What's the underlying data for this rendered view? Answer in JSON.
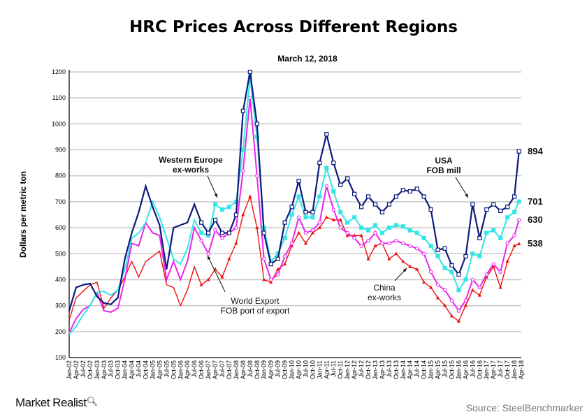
{
  "chart_data": {
    "type": "line",
    "title": "HRC Prices Across Different Regions",
    "subtitle": "March 12, 2018",
    "xlabel": "",
    "ylabel": "Dollars per metric ton",
    "ylim": [
      100,
      1200
    ],
    "yticks": [
      100,
      200,
      300,
      400,
      500,
      600,
      700,
      800,
      900,
      1000,
      1100,
      1200
    ],
    "grid": true,
    "x_ticks": [
      "Jan-02",
      "Apr-02",
      "Jul-02",
      "Oct-02",
      "Jan-03",
      "Apr-03",
      "Jul-03",
      "Oct-03",
      "Jan-04",
      "Apr-04",
      "Jul-04",
      "Oct-04",
      "Jan-05",
      "Apr-05",
      "Jul-05",
      "Oct-05",
      "Jan-06",
      "Apr-06",
      "Jul-06",
      "Oct-06",
      "Jan-07",
      "Apr-07",
      "Jul-07",
      "Oct-07",
      "Jan-08",
      "Apr-08",
      "Jul-08",
      "Oct-08",
      "Jan-09",
      "Apr-09",
      "Jul-09",
      "Oct-09",
      "Jan-10",
      "Apr-10",
      "Jul-10",
      "Oct-10",
      "Jan-11",
      "Apr-11",
      "Jul-11",
      "Oct-11",
      "Jan-12",
      "Apr-12",
      "Jul-12",
      "Oct-12",
      "Jan-13",
      "Apr-13",
      "Jul-13",
      "Oct-13",
      "Jan-14",
      "Apr-14",
      "Jul-14",
      "Oct-14",
      "Jan-15",
      "Apr-15",
      "Jul-15",
      "Oct-15",
      "Jan-16",
      "Apr-16",
      "Jul-16",
      "Oct-16",
      "Jan-17",
      "Apr-17",
      "Jul-17",
      "Oct-17",
      "Jan-18",
      "Apr-18"
    ],
    "x": [
      "Jan-02",
      "Apr-02",
      "Jul-02",
      "Oct-02",
      "Jan-03",
      "Apr-03",
      "Jul-03",
      "Oct-03",
      "Jan-04",
      "Apr-04",
      "Jul-04",
      "Oct-04",
      "Jan-05",
      "Apr-05",
      "Jul-05",
      "Oct-05",
      "Jan-06",
      "Apr-06",
      "Jul-06",
      "Oct-06",
      "Jan-07",
      "Apr-07",
      "Jul-07",
      "Oct-07",
      "Jan-08",
      "Apr-08",
      "Jul-08",
      "Oct-08",
      "Jan-09",
      "Apr-09",
      "Jul-09",
      "Oct-09",
      "Jan-10",
      "Apr-10",
      "Jul-10",
      "Oct-10",
      "Jan-11",
      "Apr-11",
      "Jul-11",
      "Oct-11",
      "Jan-12",
      "Apr-12",
      "Jul-12",
      "Oct-12",
      "Jan-13",
      "Apr-13",
      "Jul-13",
      "Oct-13",
      "Jan-14",
      "Apr-14",
      "Jul-14",
      "Oct-14",
      "Jan-15",
      "Apr-15",
      "Jul-15",
      "Oct-15",
      "Jan-16",
      "Apr-16",
      "Jul-16",
      "Oct-16",
      "Jan-17",
      "Apr-17",
      "Jul-17",
      "Oct-17",
      "Jan-18",
      "Mar-18"
    ],
    "series": [
      {
        "name": "USA FOB mill",
        "color": "#0d1a7a",
        "marker": "hollow-square",
        "values": [
          280,
          370,
          380,
          385,
          335,
          310,
          305,
          330,
          480,
          580,
          660,
          760,
          680,
          610,
          440,
          600,
          610,
          620,
          690,
          620,
          580,
          630,
          580,
          580,
          650,
          1050,
          1200,
          1000,
          580,
          460,
          480,
          620,
          680,
          780,
          660,
          660,
          850,
          960,
          850,
          765,
          790,
          730,
          680,
          720,
          690,
          660,
          690,
          720,
          745,
          740,
          750,
          720,
          670,
          515,
          520,
          455,
          420,
          490,
          690,
          560,
          670,
          690,
          665,
          680,
          720,
          894
        ]
      },
      {
        "name": "Western Europe ex-works",
        "color": "#33e6e6",
        "marker": "filled-square",
        "values": [
          190,
          220,
          265,
          300,
          350,
          355,
          340,
          360,
          440,
          560,
          580,
          620,
          700,
          640,
          560,
          480,
          460,
          520,
          630,
          580,
          570,
          690,
          670,
          680,
          700,
          900,
          1180,
          950,
          600,
          470,
          500,
          560,
          650,
          720,
          640,
          640,
          720,
          830,
          740,
          660,
          620,
          640,
          600,
          590,
          610,
          580,
          600,
          610,
          605,
          590,
          580,
          560,
          530,
          490,
          445,
          430,
          360,
          400,
          500,
          490,
          580,
          590,
          560,
          640,
          660,
          701
        ]
      },
      {
        "name": "World Export FOB port of export",
        "color": "#ee22ee",
        "marker": "hollow-circle",
        "values": [
          195,
          250,
          285,
          300,
          350,
          280,
          275,
          290,
          400,
          540,
          530,
          620,
          580,
          570,
          400,
          470,
          400,
          470,
          600,
          550,
          500,
          590,
          560,
          580,
          600,
          820,
          1100,
          800,
          480,
          400,
          420,
          490,
          540,
          640,
          580,
          590,
          620,
          760,
          670,
          600,
          580,
          560,
          530,
          550,
          580,
          540,
          540,
          550,
          540,
          530,
          520,
          500,
          430,
          380,
          360,
          320,
          280,
          320,
          400,
          370,
          420,
          460,
          430,
          540,
          570,
          630
        ]
      },
      {
        "name": "China ex-works",
        "color": "#ee1111",
        "marker": "triangle",
        "values": [
          245,
          330,
          355,
          380,
          390,
          290,
          330,
          360,
          410,
          470,
          410,
          470,
          490,
          510,
          380,
          370,
          300,
          360,
          450,
          380,
          400,
          440,
          410,
          480,
          540,
          650,
          720,
          600,
          400,
          390,
          440,
          460,
          530,
          580,
          540,
          580,
          600,
          640,
          630,
          630,
          570,
          570,
          570,
          480,
          530,
          540,
          480,
          500,
          470,
          450,
          440,
          390,
          370,
          330,
          300,
          260,
          240,
          300,
          360,
          340,
          410,
          450,
          370,
          470,
          530,
          538
        ]
      }
    ],
    "end_labels": [
      "894",
      "701",
      "630",
      "538"
    ],
    "annotations": {
      "western_europe": [
        "Western Europe",
        "ex-works"
      ],
      "world_export": [
        "World Export",
        "FOB port of export"
      ],
      "china": [
        "China",
        "ex-works"
      ],
      "usa": [
        "USA",
        "FOB mill"
      ]
    }
  },
  "footer": {
    "logo": "Market Realist",
    "source": "Source:  SteelBenchmarker"
  }
}
